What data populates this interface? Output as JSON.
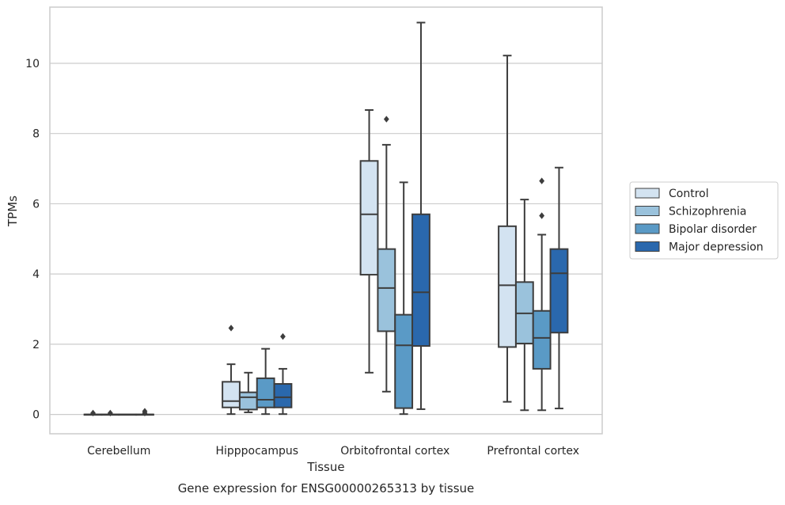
{
  "chart_data": {
    "type": "box",
    "caption": "Gene expression for ENSG00000265313 by tissue",
    "xlabel": "Tissue",
    "ylabel": "TPMs",
    "ylim": [
      -0.55,
      11.6
    ],
    "yticks": [
      0,
      2,
      4,
      6,
      8,
      10
    ],
    "grid": "horizontal",
    "legend_position": "right",
    "categories": [
      "Cerebellum",
      "Hipppocampus",
      "Orbitofrontal cortex",
      "Prefrontal cortex"
    ],
    "series": [
      {
        "name": "Control",
        "color": "#d3e3f1",
        "boxes": [
          {
            "whisker_low": 0,
            "q1": 0,
            "median": 0,
            "q3": 0,
            "whisker_high": 0,
            "outliers": [
              0.04
            ]
          },
          {
            "whisker_low": 0.01,
            "q1": 0.2,
            "median": 0.38,
            "q3": 0.93,
            "whisker_high": 1.43,
            "outliers": [
              2.46
            ]
          },
          {
            "whisker_low": 1.19,
            "q1": 3.98,
            "median": 5.7,
            "q3": 7.22,
            "whisker_high": 8.67,
            "outliers": []
          },
          {
            "whisker_low": 0.36,
            "q1": 1.92,
            "median": 3.68,
            "q3": 5.36,
            "whisker_high": 10.22,
            "outliers": []
          }
        ]
      },
      {
        "name": "Schizophrenia",
        "color": "#9ac2dc",
        "boxes": [
          {
            "whisker_low": 0,
            "q1": 0,
            "median": 0,
            "q3": 0,
            "whisker_high": 0,
            "outliers": [
              0.04
            ]
          },
          {
            "whisker_low": 0.06,
            "q1": 0.14,
            "median": 0.49,
            "q3": 0.63,
            "whisker_high": 1.19,
            "outliers": []
          },
          {
            "whisker_low": 0.65,
            "q1": 2.37,
            "median": 3.6,
            "q3": 4.71,
            "whisker_high": 7.68,
            "outliers": [
              8.41
            ]
          },
          {
            "whisker_low": 0.12,
            "q1": 2.02,
            "median": 2.88,
            "q3": 3.77,
            "whisker_high": 6.12,
            "outliers": []
          }
        ]
      },
      {
        "name": "Bipolar disorder",
        "color": "#5a9ac6",
        "boxes": [
          {
            "whisker_low": 0,
            "q1": 0,
            "median": 0,
            "q3": 0,
            "whisker_high": 0,
            "outliers": []
          },
          {
            "whisker_low": 0.01,
            "q1": 0.2,
            "median": 0.42,
            "q3": 1.03,
            "whisker_high": 1.87,
            "outliers": []
          },
          {
            "whisker_low": 0.01,
            "q1": 0.18,
            "median": 1.97,
            "q3": 2.84,
            "whisker_high": 6.61,
            "outliers": []
          },
          {
            "whisker_low": 0.12,
            "q1": 1.3,
            "median": 2.18,
            "q3": 2.95,
            "whisker_high": 5.12,
            "outliers": [
              5.66,
              6.65
            ]
          }
        ]
      },
      {
        "name": "Major depression",
        "color": "#2a68ad",
        "boxes": [
          {
            "whisker_low": 0,
            "q1": 0,
            "median": 0,
            "q3": 0,
            "whisker_high": 0,
            "outliers": [
              0.04,
              0.09
            ]
          },
          {
            "whisker_low": 0.01,
            "q1": 0.2,
            "median": 0.49,
            "q3": 0.87,
            "whisker_high": 1.3,
            "outliers": [
              2.22
            ]
          },
          {
            "whisker_low": 0.15,
            "q1": 1.95,
            "median": 3.48,
            "q3": 5.7,
            "whisker_high": 11.16,
            "outliers": []
          },
          {
            "whisker_low": 0.17,
            "q1": 2.33,
            "median": 4.02,
            "q3": 4.71,
            "whisker_high": 7.03,
            "outliers": []
          }
        ]
      }
    ]
  }
}
